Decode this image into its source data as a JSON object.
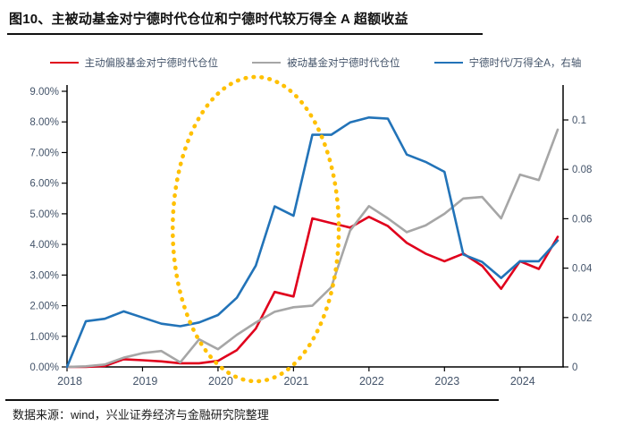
{
  "header": {
    "title": "图10、主被动基金对宁德时代仓位和宁德时代较万得全 A 超额收益"
  },
  "footer": {
    "source": "数据来源：wind，兴业证券经济与金融研究院整理"
  },
  "colors": {
    "active": "#E0001C",
    "passive": "#A6A6A6",
    "ratio": "#2273B8",
    "annotation": "#FFC000",
    "axis": "#000000",
    "tick_text": "#44546A"
  },
  "chart_data": {
    "type": "line",
    "title": "主被动基金对宁德时代仓位和宁德时代较万得全 A 超额收益",
    "categories": [
      "2018Q1",
      "2018Q2",
      "2018Q3",
      "2018Q4",
      "2019Q1",
      "2019Q2",
      "2019Q3",
      "2019Q4",
      "2020Q1",
      "2020Q2",
      "2020Q3",
      "2020Q4",
      "2021Q1",
      "2021Q2",
      "2021Q3",
      "2021Q4",
      "2022Q1",
      "2022Q2",
      "2022Q3",
      "2022Q4",
      "2023Q1",
      "2023Q2",
      "2023Q3",
      "2023Q4",
      "2024Q1",
      "2024Q2",
      "2024Q3"
    ],
    "x_tick_labels": [
      "2018",
      "2019",
      "2020",
      "2021",
      "2022",
      "2023",
      "2024"
    ],
    "left_axis": {
      "tick_labels": [
        "0.00%",
        "1.00%",
        "2.00%",
        "3.00%",
        "4.00%",
        "5.00%",
        "6.00%",
        "7.00%",
        "8.00%",
        "9.00%"
      ],
      "max": 9,
      "unit": "%"
    },
    "right_axis": {
      "tick_labels": [
        "0",
        "0.02",
        "0.04",
        "0.06",
        "0.08",
        "0.1"
      ],
      "tick_values": [
        0,
        0.02,
        0.04,
        0.06,
        0.08,
        0.1
      ],
      "value_at_plot_top": 0.1116
    },
    "legend_position": "top",
    "grid": false,
    "series": [
      {
        "name": "主动偏股基金对宁德时代仓位",
        "axis": "left",
        "color_key": "active",
        "values": [
          0.0,
          0.0,
          0.03,
          0.25,
          0.22,
          0.18,
          0.12,
          0.12,
          0.2,
          0.55,
          1.25,
          2.45,
          2.3,
          4.85,
          4.7,
          4.55,
          4.9,
          4.6,
          4.05,
          3.7,
          3.45,
          3.7,
          3.3,
          2.55,
          3.45,
          3.2,
          4.25
        ]
      },
      {
        "name": "被动基金对宁德时代仓位",
        "axis": "left",
        "color_key": "passive",
        "values": [
          0.0,
          0.02,
          0.08,
          0.3,
          0.45,
          0.52,
          0.15,
          0.9,
          0.58,
          1.05,
          1.45,
          1.8,
          1.95,
          2.0,
          2.6,
          4.45,
          5.25,
          4.85,
          4.4,
          4.62,
          5.0,
          5.5,
          5.55,
          4.85,
          6.28,
          6.1,
          7.75
        ]
      },
      {
        "name": "宁德时代/万得全A，右轴",
        "axis": "right",
        "color_key": "ratio",
        "values": [
          0.0,
          0.0185,
          0.0195,
          0.0225,
          0.02,
          0.0175,
          0.0165,
          0.018,
          0.021,
          0.028,
          0.041,
          0.065,
          0.0612,
          0.094,
          0.094,
          0.099,
          0.101,
          0.1005,
          0.086,
          0.083,
          0.079,
          0.0455,
          0.0425,
          0.036,
          0.0428,
          0.0428,
          0.0512
        ]
      }
    ],
    "annotation": {
      "type": "ellipse",
      "style": "dotted",
      "color_key": "annotation",
      "x_center_year": 2020.5,
      "x_radius_years": 1.1,
      "y_center_frac": 0.5,
      "y_radius_frac": 0.552
    }
  }
}
